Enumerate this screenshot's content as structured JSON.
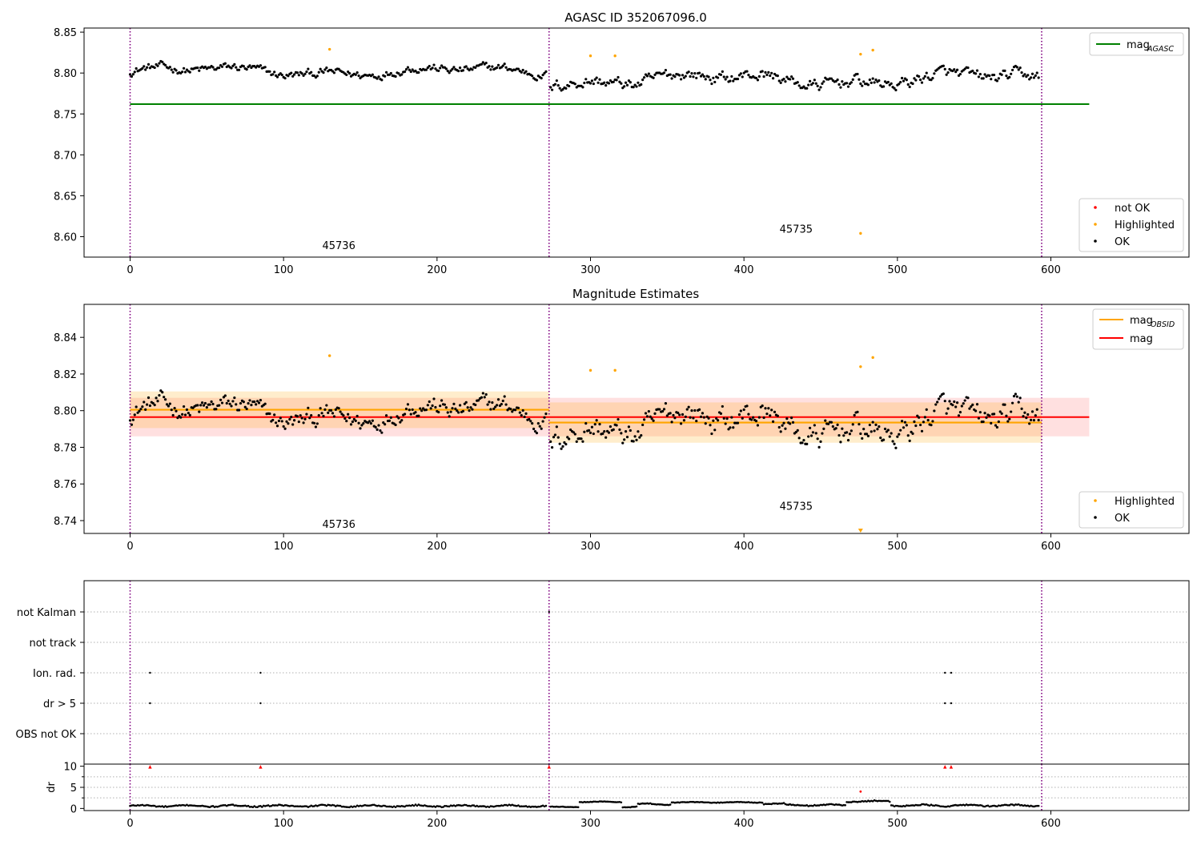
{
  "chart_data": [
    {
      "type": "scatter",
      "title": "AGASC ID 352067096.0",
      "xlim": [
        -30,
        690
      ],
      "ylim": [
        8.575,
        8.855
      ],
      "yticks": [
        8.6,
        8.65,
        8.7,
        8.75,
        8.8,
        8.85
      ],
      "ytick_labels": [
        "8.60",
        "8.65",
        "8.70",
        "8.75",
        "8.80",
        "8.85"
      ],
      "xticks": [
        0,
        100,
        200,
        300,
        400,
        500,
        600
      ],
      "xtick_labels": [
        "0",
        "100",
        "200",
        "300",
        "400",
        "500",
        "600"
      ],
      "obs_boundaries": [
        0,
        273,
        594
      ],
      "obs_labels": [
        {
          "text": "45736",
          "x": 136,
          "y": 8.585
        },
        {
          "text": "45735",
          "x": 434,
          "y": 8.605
        }
      ],
      "reference_line": {
        "name": "mag_AGASC",
        "value": 8.762,
        "x0": 0,
        "x1": 625,
        "color": "#008000"
      },
      "highlighted": [
        [
          130,
          8.829
        ],
        [
          300,
          8.821
        ],
        [
          316,
          8.821
        ],
        [
          476,
          8.823
        ],
        [
          476,
          8.604
        ],
        [
          484,
          8.828
        ]
      ],
      "ok_segments": [
        {
          "x0": 0,
          "x1": 271,
          "base": 8.802,
          "amp": 0.008,
          "step": 1
        },
        {
          "x0": 274,
          "x1": 592,
          "base": 8.792,
          "amp": 0.011,
          "step": 1
        }
      ],
      "legend_lines": [
        {
          "label_main": "mag",
          "label_sub": "AGASC",
          "color": "#008000"
        }
      ],
      "legend_points": [
        {
          "label": "not OK",
          "color": "#ff0000"
        },
        {
          "label": "Highlighted",
          "color": "#ffa500"
        },
        {
          "label": "OK",
          "color": "#000000"
        }
      ]
    },
    {
      "type": "scatter",
      "title": "Magnitude Estimates",
      "xlim": [
        -30,
        690
      ],
      "ylim": [
        8.733,
        8.858
      ],
      "yticks": [
        8.74,
        8.76,
        8.78,
        8.8,
        8.82,
        8.84
      ],
      "ytick_labels": [
        "8.74",
        "8.76",
        "8.78",
        "8.80",
        "8.82",
        "8.84"
      ],
      "xticks": [
        0,
        100,
        200,
        300,
        400,
        500,
        600
      ],
      "xtick_labels": [
        "0",
        "100",
        "200",
        "300",
        "400",
        "500",
        "600"
      ],
      "obs_boundaries": [
        0,
        273,
        594
      ],
      "obs_labels": [
        {
          "text": "45736",
          "x": 136,
          "y": 8.736
        },
        {
          "text": "45735",
          "x": 434,
          "y": 8.746
        }
      ],
      "mag_line": {
        "name": "mag",
        "value": 8.7965,
        "x0": 0,
        "x1": 625,
        "band": [
          8.786,
          8.807
        ],
        "color": "#ff0000"
      },
      "obsid_lines": [
        {
          "x0": 0,
          "x1": 273,
          "value": 8.8005,
          "band": [
            8.7905,
            8.8105
          ]
        },
        {
          "x0": 273,
          "x1": 594,
          "value": 8.7935,
          "band": [
            8.7825,
            8.8045
          ]
        }
      ],
      "highlighted": [
        [
          130,
          8.83
        ],
        [
          300,
          8.822
        ],
        [
          316,
          8.822
        ],
        [
          476,
          8.824
        ],
        [
          484,
          8.829
        ]
      ],
      "off_axis_markers": [
        [
          476,
          8.734
        ]
      ],
      "ok_segments": [
        {
          "x0": 0,
          "x1": 271,
          "base": 8.7985,
          "amp": 0.008,
          "step": 1
        },
        {
          "x0": 274,
          "x1": 592,
          "base": 8.7925,
          "amp": 0.011,
          "step": 1
        }
      ],
      "legend_lines": [
        {
          "label_main": "mag",
          "label_sub": "OBSID",
          "color": "#ffa500"
        },
        {
          "label_main": "mag",
          "label_sub": "",
          "color": "#ff0000"
        }
      ],
      "legend_points": [
        {
          "label": "Highlighted",
          "color": "#ffa500"
        },
        {
          "label": "OK",
          "color": "#000000"
        }
      ]
    },
    {
      "type": "scatter",
      "title": "",
      "xlim": [
        -30,
        690
      ],
      "categories": [
        "not Kalman",
        "not track",
        "Ion. rad.",
        "dr > 5",
        "OBS not OK"
      ],
      "flags": {
        "not Kalman": [
          273
        ],
        "not track": [],
        "Ion. rad.": [
          13,
          85,
          531,
          535
        ],
        "dr > 5": [
          13,
          85,
          531,
          535
        ],
        "OBS not OK": []
      },
      "obs_boundaries": [
        0,
        273,
        594
      ]
    },
    {
      "type": "scatter",
      "title": "",
      "ylabel": "dr",
      "xlim": [
        -30,
        690
      ],
      "ylim": [
        -0.5,
        10.5
      ],
      "yticks": [
        0,
        5,
        10
      ],
      "ytick_labels": [
        "0",
        "5",
        "10"
      ],
      "xticks": [
        0,
        100,
        200,
        300,
        400,
        500,
        600
      ],
      "xtick_labels": [
        "0",
        "100",
        "200",
        "300",
        "400",
        "500",
        "600"
      ],
      "obs_boundaries": [
        0,
        273,
        594
      ],
      "clipped_markers": [
        13,
        85,
        273,
        531,
        535
      ],
      "red_points": [
        [
          476,
          4.0
        ]
      ],
      "dr_segments": [
        {
          "x0": 0,
          "x1": 271,
          "base": 0.6,
          "amp": 0.35
        },
        {
          "x0": 274,
          "x1": 292,
          "base": 0.35,
          "amp": 0.15
        },
        {
          "x0": 293,
          "x1": 320,
          "base": 1.55,
          "amp": 0.15
        },
        {
          "x0": 321,
          "x1": 330,
          "base": 0.4,
          "amp": 0.2
        },
        {
          "x0": 331,
          "x1": 352,
          "base": 1.0,
          "amp": 0.3
        },
        {
          "x0": 353,
          "x1": 412,
          "base": 1.45,
          "amp": 0.15
        },
        {
          "x0": 413,
          "x1": 426,
          "base": 1.1,
          "amp": 0.3
        },
        {
          "x0": 427,
          "x1": 466,
          "base": 0.8,
          "amp": 0.3
        },
        {
          "x0": 467,
          "x1": 495,
          "base": 1.7,
          "amp": 0.3
        },
        {
          "x0": 496,
          "x1": 592,
          "base": 0.7,
          "amp": 0.35
        }
      ]
    }
  ]
}
